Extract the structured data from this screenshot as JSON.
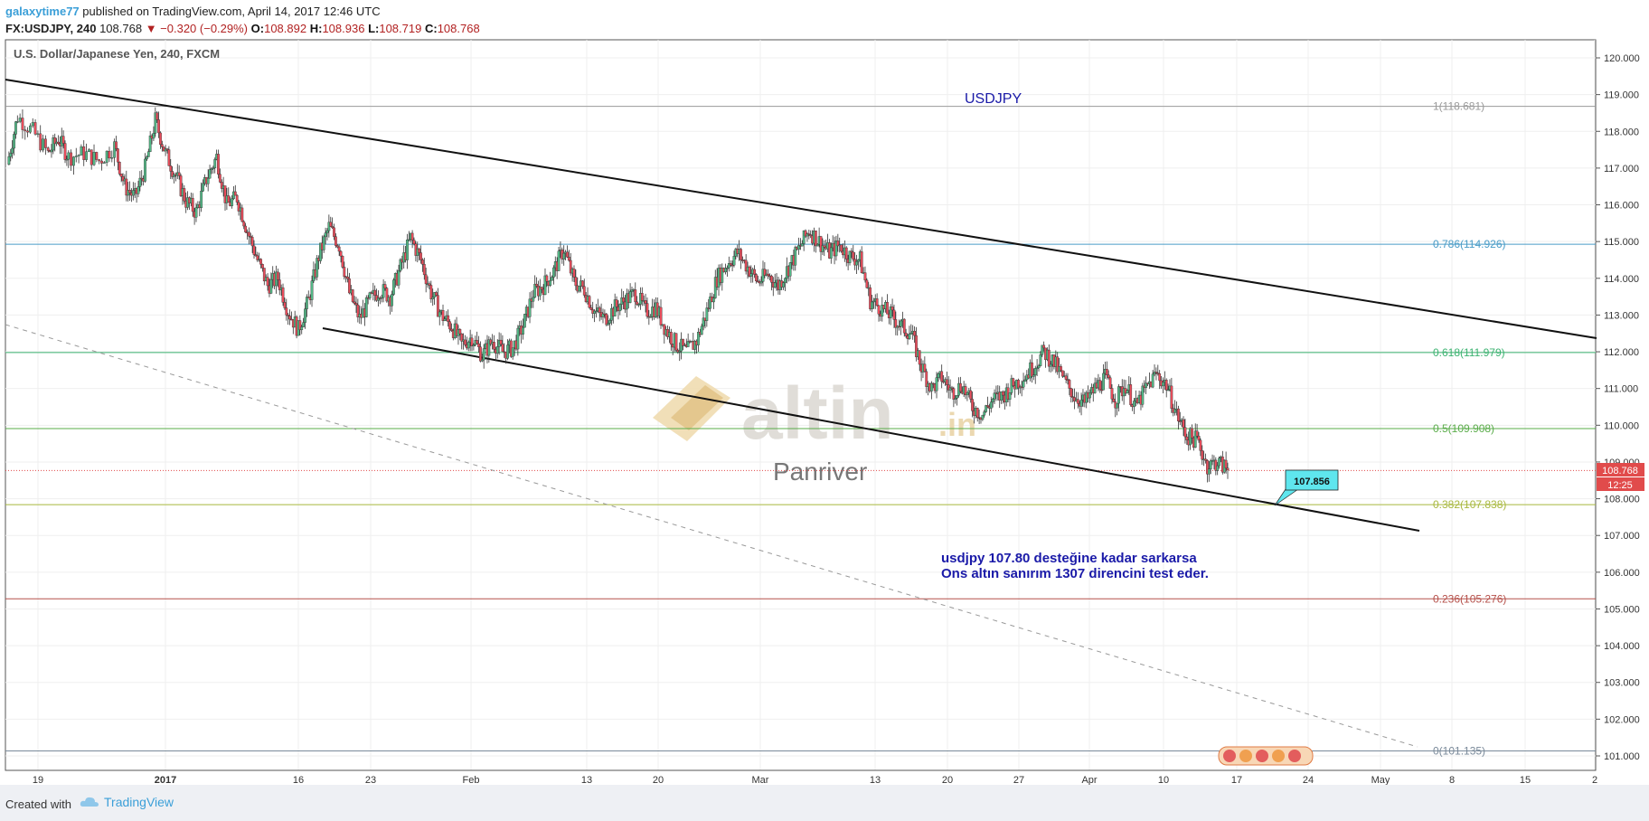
{
  "header": {
    "author": "galaxytime77",
    "published": "published on TradingView.com, April 14, 2017 12:46 UTC",
    "symbol": "FX:USDJPY, 240",
    "last": "108.768",
    "change": "▼ −0.320 (−0.29%)",
    "o_label": "O:",
    "o": "108.892",
    "h_label": "H:",
    "h": "108.936",
    "l_label": "L:",
    "l": "108.719",
    "c_label": "C:",
    "c": "108.768"
  },
  "footer": {
    "created": "Created with",
    "brand": "TradingView"
  },
  "chart_data": {
    "type": "candlestick",
    "title": "U.S. Dollar/Japanese Yen, 240, FXCM",
    "annotation_title": "USDJPY",
    "y_range": [
      100.6,
      120.2
    ],
    "y_ticks": [
      "120.000",
      "119.000",
      "118.000",
      "117.000",
      "116.000",
      "115.000",
      "114.000",
      "113.000",
      "112.000",
      "111.000",
      "110.000",
      "109.000",
      "108.000",
      "107.000",
      "106.000",
      "105.000",
      "104.000",
      "103.000",
      "102.000",
      "101.000"
    ],
    "x_ticks": [
      "19",
      "2017",
      "16",
      "23",
      "Feb",
      "13",
      "20",
      "Mar",
      "13",
      "20",
      "27",
      "Apr",
      "10",
      "17",
      "24",
      "May",
      "8",
      "15",
      "2"
    ],
    "fib_levels": [
      {
        "label": "1(118.681)",
        "value": 118.681,
        "color": "#9a9a9a"
      },
      {
        "label": "0.786(114.926)",
        "value": 114.926,
        "color": "#4a9cc7"
      },
      {
        "label": "0.618(111.979)",
        "value": 111.979,
        "color": "#3cb371"
      },
      {
        "label": "0.5(109.908)",
        "value": 109.908,
        "color": "#5aac4a"
      },
      {
        "label": "0.382(107.838)",
        "value": 107.838,
        "color": "#a8b83e"
      },
      {
        "label": "0.236(105.276)",
        "value": 105.276,
        "color": "#b5504a"
      },
      {
        "label": "0(101.135)",
        "value": 101.135,
        "color": "#7a8a9a"
      }
    ],
    "last_price_label": "108.768",
    "countdown_label": "12:25",
    "callout": "107.856",
    "note_line1": "usdjpy 107.80 desteğine kadar sarkarsa",
    "note_line2": "Ons altın sanırım 1307 direncini test eder.",
    "watermark": "altin",
    "watermark_suffix": ".in",
    "watermark_sub": "Panriver",
    "price_path": [
      [
        0,
        117.1
      ],
      [
        2,
        118.4
      ],
      [
        5,
        118.0
      ],
      [
        8,
        117.4
      ],
      [
        10,
        117.8
      ],
      [
        12,
        117.3
      ],
      [
        15,
        117.4
      ],
      [
        18,
        117.2
      ],
      [
        21,
        117.6
      ],
      [
        23,
        116.5
      ],
      [
        25,
        116.2
      ],
      [
        27,
        117.0
      ],
      [
        29,
        118.3
      ],
      [
        31,
        117.4
      ],
      [
        33,
        116.8
      ],
      [
        35,
        116.1
      ],
      [
        37,
        115.8
      ],
      [
        39,
        116.7
      ],
      [
        41,
        117.3
      ],
      [
        43,
        116.0
      ],
      [
        45,
        116.2
      ],
      [
        47,
        115.3
      ],
      [
        49,
        114.5
      ],
      [
        51,
        113.8
      ],
      [
        53,
        114.0
      ],
      [
        55,
        113.1
      ],
      [
        57,
        112.6
      ],
      [
        59,
        113.4
      ],
      [
        61,
        114.6
      ],
      [
        63,
        115.4
      ],
      [
        65,
        114.9
      ],
      [
        67,
        113.6
      ],
      [
        69,
        112.9
      ],
      [
        71,
        113.4
      ],
      [
        73,
        113.7
      ],
      [
        75,
        113.5
      ],
      [
        77,
        114.3
      ],
      [
        79,
        115.1
      ],
      [
        81,
        114.5
      ],
      [
        83,
        113.6
      ],
      [
        85,
        113.0
      ],
      [
        87,
        112.7
      ],
      [
        89,
        112.2
      ],
      [
        91,
        112.4
      ],
      [
        93,
        111.9
      ],
      [
        95,
        112.3
      ],
      [
        97,
        112.0
      ],
      [
        99,
        112.1
      ],
      [
        101,
        112.7
      ],
      [
        103,
        113.6
      ],
      [
        105,
        113.8
      ],
      [
        107,
        114.2
      ],
      [
        109,
        114.8
      ],
      [
        111,
        113.9
      ],
      [
        113,
        113.7
      ],
      [
        115,
        113.1
      ],
      [
        117,
        112.9
      ],
      [
        119,
        113.2
      ],
      [
        121,
        113.4
      ],
      [
        123,
        113.6
      ],
      [
        125,
        113.1
      ],
      [
        127,
        113.2
      ],
      [
        129,
        112.6
      ],
      [
        131,
        112.2
      ],
      [
        133,
        112.0
      ],
      [
        135,
        112.3
      ],
      [
        137,
        113.1
      ],
      [
        139,
        114.0
      ],
      [
        141,
        114.4
      ],
      [
        143,
        114.7
      ],
      [
        145,
        114.3
      ],
      [
        147,
        113.9
      ],
      [
        149,
        114.1
      ],
      [
        151,
        113.8
      ],
      [
        153,
        114.3
      ],
      [
        155,
        114.8
      ],
      [
        157,
        115.3
      ],
      [
        159,
        115.0
      ],
      [
        161,
        114.7
      ],
      [
        163,
        114.9
      ],
      [
        165,
        114.6
      ],
      [
        167,
        114.5
      ],
      [
        169,
        113.4
      ],
      [
        171,
        113.2
      ],
      [
        173,
        113.0
      ],
      [
        175,
        112.7
      ],
      [
        177,
        112.5
      ],
      [
        179,
        111.6
      ],
      [
        181,
        111.0
      ],
      [
        183,
        111.3
      ],
      [
        185,
        110.9
      ],
      [
        187,
        111.1
      ],
      [
        189,
        110.5
      ],
      [
        191,
        110.3
      ],
      [
        193,
        110.7
      ],
      [
        195,
        110.8
      ],
      [
        197,
        111.1
      ],
      [
        199,
        111.3
      ],
      [
        201,
        111.6
      ],
      [
        203,
        112.0
      ],
      [
        205,
        111.7
      ],
      [
        207,
        111.2
      ],
      [
        209,
        110.8
      ],
      [
        211,
        110.6
      ],
      [
        213,
        111.0
      ],
      [
        215,
        111.3
      ],
      [
        217,
        110.7
      ],
      [
        219,
        111.1
      ],
      [
        221,
        110.5
      ],
      [
        223,
        111.0
      ],
      [
        225,
        111.4
      ],
      [
        227,
        111.1
      ],
      [
        229,
        110.3
      ],
      [
        231,
        109.7
      ],
      [
        233,
        109.6
      ],
      [
        235,
        108.9
      ],
      [
        237,
        109.0
      ],
      [
        239,
        108.8
      ]
    ]
  }
}
